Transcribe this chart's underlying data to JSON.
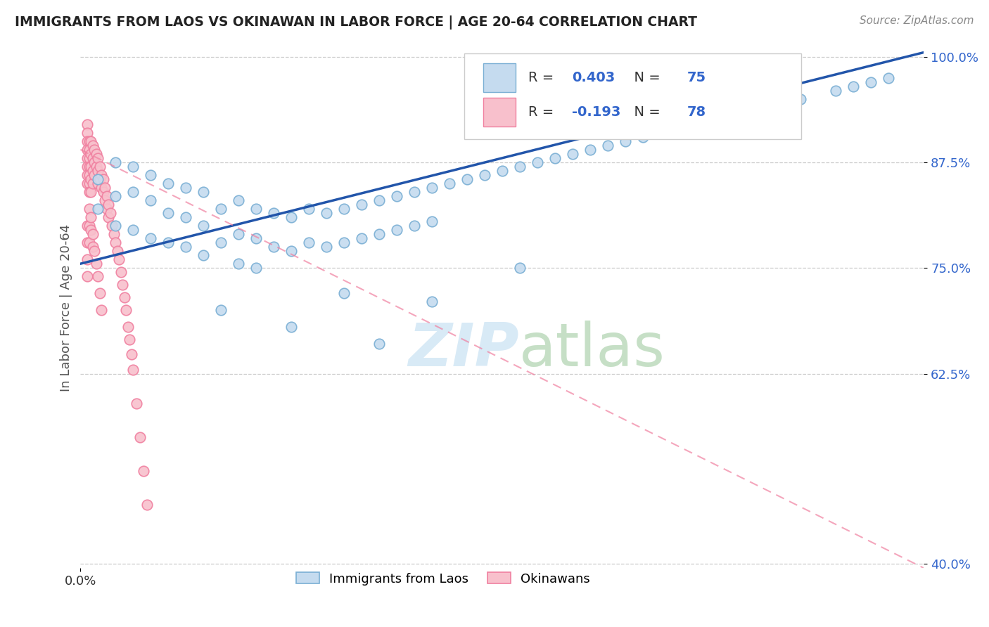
{
  "title": "IMMIGRANTS FROM LAOS VS OKINAWAN IN LABOR FORCE | AGE 20-64 CORRELATION CHART",
  "source": "Source: ZipAtlas.com",
  "ylabel": "In Labor Force | Age 20-64",
  "xlim": [
    0.0,
    0.048
  ],
  "ylim": [
    0.395,
    1.01
  ],
  "yticks": [
    0.4,
    0.625,
    0.75,
    0.875,
    1.0
  ],
  "ytick_labels": [
    "40.0%",
    "62.5%",
    "75.0%",
    "87.5%",
    "100.0%"
  ],
  "r_laos": 0.403,
  "n_laos": 75,
  "r_okinawa": -0.193,
  "n_okinawa": 78,
  "blue_edge": "#7aafd4",
  "blue_face": "#c5dbef",
  "pink_edge": "#f080a0",
  "pink_face": "#f8c0cc",
  "trend_blue": "#2255aa",
  "trend_pink": "#cc8899",
  "legend_r_color": "#3366cc",
  "watermark_color": "#d8eaf6",
  "laos_x": [
    0.001,
    0.001,
    0.002,
    0.002,
    0.002,
    0.003,
    0.003,
    0.003,
    0.004,
    0.004,
    0.004,
    0.005,
    0.005,
    0.005,
    0.006,
    0.006,
    0.006,
    0.007,
    0.007,
    0.007,
    0.008,
    0.008,
    0.009,
    0.009,
    0.009,
    0.01,
    0.01,
    0.01,
    0.011,
    0.011,
    0.012,
    0.012,
    0.013,
    0.013,
    0.014,
    0.014,
    0.015,
    0.015,
    0.016,
    0.016,
    0.017,
    0.017,
    0.018,
    0.018,
    0.019,
    0.019,
    0.02,
    0.02,
    0.021,
    0.022,
    0.023,
    0.024,
    0.025,
    0.026,
    0.027,
    0.028,
    0.029,
    0.03,
    0.031,
    0.032,
    0.033,
    0.035,
    0.037,
    0.039,
    0.041,
    0.043,
    0.044,
    0.045,
    0.046,
    0.008,
    0.012,
    0.015,
    0.017,
    0.02,
    0.025
  ],
  "laos_y": [
    0.855,
    0.82,
    0.875,
    0.835,
    0.8,
    0.87,
    0.84,
    0.795,
    0.86,
    0.83,
    0.785,
    0.85,
    0.815,
    0.78,
    0.845,
    0.81,
    0.775,
    0.84,
    0.8,
    0.765,
    0.82,
    0.78,
    0.83,
    0.79,
    0.755,
    0.82,
    0.785,
    0.75,
    0.815,
    0.775,
    0.81,
    0.77,
    0.82,
    0.78,
    0.815,
    0.775,
    0.82,
    0.78,
    0.825,
    0.785,
    0.83,
    0.79,
    0.835,
    0.795,
    0.84,
    0.8,
    0.845,
    0.805,
    0.85,
    0.855,
    0.86,
    0.865,
    0.87,
    0.875,
    0.88,
    0.885,
    0.89,
    0.895,
    0.9,
    0.905,
    0.91,
    0.92,
    0.93,
    0.94,
    0.95,
    0.96,
    0.965,
    0.97,
    0.975,
    0.7,
    0.68,
    0.72,
    0.66,
    0.71,
    0.75
  ],
  "okinawa_x": [
    0.0004,
    0.0004,
    0.0004,
    0.0004,
    0.0004,
    0.0004,
    0.0004,
    0.0004,
    0.0005,
    0.0005,
    0.0005,
    0.0005,
    0.0005,
    0.0005,
    0.0005,
    0.0006,
    0.0006,
    0.0006,
    0.0006,
    0.0006,
    0.0007,
    0.0007,
    0.0007,
    0.0007,
    0.0008,
    0.0008,
    0.0008,
    0.0009,
    0.0009,
    0.001,
    0.001,
    0.001,
    0.0011,
    0.0011,
    0.0012,
    0.0012,
    0.0013,
    0.0013,
    0.0014,
    0.0014,
    0.0015,
    0.0015,
    0.0016,
    0.0016,
    0.0017,
    0.0018,
    0.0019,
    0.002,
    0.0021,
    0.0022,
    0.0023,
    0.0024,
    0.0025,
    0.0026,
    0.0027,
    0.0028,
    0.0029,
    0.003,
    0.0032,
    0.0034,
    0.0036,
    0.0038,
    0.0004,
    0.0004,
    0.0004,
    0.0004,
    0.0005,
    0.0005,
    0.0005,
    0.0006,
    0.0006,
    0.0007,
    0.0007,
    0.0008,
    0.0009,
    0.001,
    0.0011,
    0.0012
  ],
  "okinawa_y": [
    0.92,
    0.91,
    0.9,
    0.89,
    0.88,
    0.87,
    0.86,
    0.85,
    0.9,
    0.89,
    0.88,
    0.87,
    0.86,
    0.85,
    0.84,
    0.9,
    0.885,
    0.87,
    0.855,
    0.84,
    0.895,
    0.88,
    0.865,
    0.85,
    0.89,
    0.875,
    0.86,
    0.885,
    0.87,
    0.88,
    0.865,
    0.85,
    0.87,
    0.855,
    0.86,
    0.845,
    0.855,
    0.84,
    0.845,
    0.83,
    0.835,
    0.82,
    0.825,
    0.81,
    0.815,
    0.8,
    0.79,
    0.78,
    0.77,
    0.76,
    0.745,
    0.73,
    0.715,
    0.7,
    0.68,
    0.665,
    0.648,
    0.63,
    0.59,
    0.55,
    0.51,
    0.47,
    0.8,
    0.78,
    0.76,
    0.74,
    0.82,
    0.8,
    0.78,
    0.81,
    0.795,
    0.79,
    0.775,
    0.77,
    0.755,
    0.74,
    0.72,
    0.7
  ],
  "blue_trend_x0": 0.0,
  "blue_trend_y0": 0.755,
  "blue_trend_x1": 0.048,
  "blue_trend_y1": 1.005,
  "pink_trend_x0": 0.0,
  "pink_trend_y0": 0.89,
  "pink_trend_x1": 0.048,
  "pink_trend_y1": 0.395
}
